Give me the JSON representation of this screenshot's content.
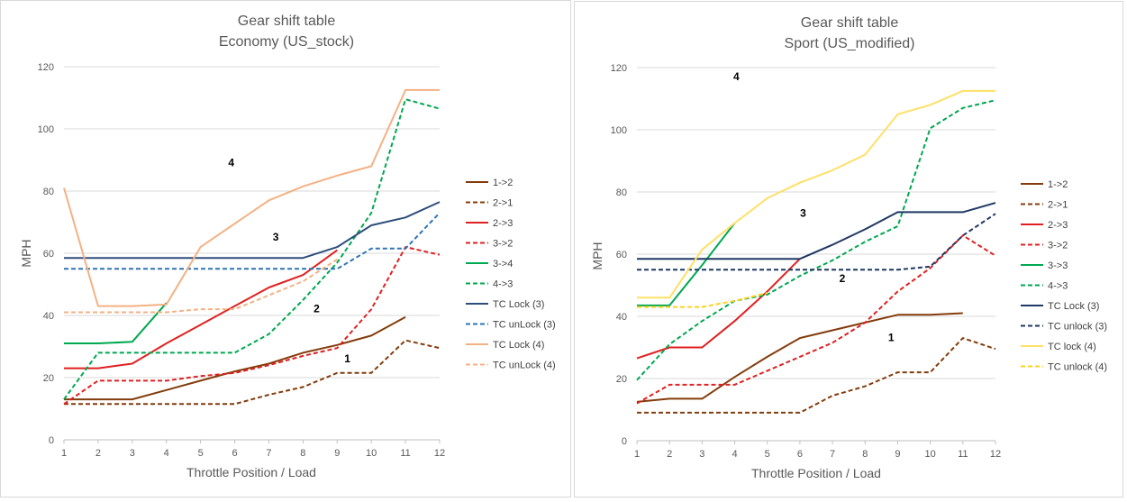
{
  "chart_data": [
    {
      "type": "line",
      "title": "Gear shift table",
      "subtitle": "Economy (US_stock)",
      "xlabel": "Throttle Position / Load",
      "ylabel": "MPH",
      "x": [
        1,
        2,
        3,
        4,
        5,
        6,
        7,
        8,
        9,
        10,
        11,
        12
      ],
      "xlim": [
        1,
        12
      ],
      "ylim": [
        0,
        120
      ],
      "yticks": [
        0,
        20,
        40,
        60,
        80,
        100,
        120
      ],
      "grid": "horizontal",
      "legend_position": "right",
      "series": [
        {
          "name": "1->2",
          "color": "#843c0c",
          "dash": "solid",
          "values": [
            13,
            13,
            13,
            16,
            19,
            22,
            24.5,
            28,
            30.5,
            33.5,
            39.5,
            null
          ]
        },
        {
          "name": "2->1",
          "color": "#843c0c",
          "dash": "dashed",
          "values": [
            11.5,
            11.5,
            11.5,
            11.5,
            11.5,
            11.5,
            14.5,
            17,
            21.5,
            21.5,
            32,
            29.5
          ]
        },
        {
          "name": "2->3",
          "color": "#e02020",
          "dash": "solid",
          "values": [
            23,
            23,
            24.5,
            31,
            37,
            43,
            49,
            53,
            61,
            null,
            null,
            null
          ]
        },
        {
          "name": "3->2",
          "color": "#e02020",
          "dash": "dashed",
          "values": [
            11.5,
            19,
            19,
            19,
            20.5,
            21.5,
            24,
            27,
            29.5,
            42,
            62,
            59.5
          ]
        },
        {
          "name": "3->4",
          "color": "#00a850",
          "dash": "solid",
          "values": [
            31,
            31,
            31.5,
            44,
            null,
            null,
            null,
            null,
            null,
            null,
            null,
            null
          ]
        },
        {
          "name": "4->3",
          "color": "#00a850",
          "dash": "dashed",
          "values": [
            13,
            28,
            28,
            28,
            28,
            28,
            34,
            45,
            57,
            73,
            109.5,
            106.5
          ]
        },
        {
          "name": "TC Lock (3)",
          "color": "#2e4d7b",
          "dash": "solid",
          "values": [
            58.5,
            58.5,
            58.5,
            58.5,
            58.5,
            58.5,
            58.5,
            58.5,
            62,
            69,
            71.5,
            76.5
          ]
        },
        {
          "name": "TC unLock (3)",
          "color": "#2e75b6",
          "dash": "dashed",
          "values": [
            55,
            55,
            55,
            55,
            55,
            55,
            55,
            55,
            55,
            61.5,
            61.5,
            73
          ]
        },
        {
          "name": "TC Lock (4)",
          "color": "#f4b183",
          "dash": "solid",
          "values": [
            81,
            43,
            43,
            43.5,
            62,
            69.5,
            77,
            81.5,
            85,
            88,
            112.5,
            112.5
          ]
        },
        {
          "name": "TC unLock (4)",
          "color": "#f4b183",
          "dash": "dashed",
          "values": [
            41,
            41,
            41,
            41,
            42,
            42,
            46.5,
            51,
            58,
            null,
            null,
            null
          ]
        }
      ],
      "region_labels": [
        {
          "text": "4",
          "x": 5.9,
          "y": 88
        },
        {
          "text": "3",
          "x": 7.2,
          "y": 64
        },
        {
          "text": "2",
          "x": 8.4,
          "y": 41
        },
        {
          "text": "1",
          "x": 9.3,
          "y": 25
        }
      ]
    },
    {
      "type": "line",
      "title": "Gear shift table",
      "subtitle": "Sport (US_modified)",
      "xlabel": "Throttle Position / Load",
      "ylabel": "MPH",
      "x": [
        1,
        2,
        3,
        4,
        5,
        6,
        7,
        8,
        9,
        10,
        11,
        12
      ],
      "xlim": [
        1,
        12
      ],
      "ylim": [
        0,
        120
      ],
      "yticks": [
        0,
        20,
        40,
        60,
        80,
        100,
        120
      ],
      "grid": "horizontal",
      "legend_position": "right",
      "series": [
        {
          "name": "1->2",
          "color": "#843c0c",
          "dash": "solid",
          "values": [
            12.5,
            13.5,
            13.5,
            20.5,
            27,
            33,
            35.5,
            38,
            40.5,
            40.5,
            41,
            null
          ]
        },
        {
          "name": "2->1",
          "color": "#843c0c",
          "dash": "dashed",
          "values": [
            9,
            9,
            9,
            9,
            9,
            9,
            14.5,
            17.5,
            22,
            22,
            33,
            29.5
          ]
        },
        {
          "name": "2->3",
          "color": "#e02020",
          "dash": "solid",
          "values": [
            26.5,
            30,
            30,
            38.5,
            48,
            58.5,
            null,
            null,
            null,
            null,
            null,
            null
          ]
        },
        {
          "name": "3->2",
          "color": "#e02020",
          "dash": "dashed",
          "values": [
            12,
            18,
            18,
            18,
            22.5,
            27,
            31.5,
            38,
            48,
            55.5,
            66,
            59.5
          ]
        },
        {
          "name": "3->3",
          "color": "#00a850",
          "dash": "solid",
          "values": [
            43.5,
            43.5,
            56.5,
            70,
            null,
            null,
            null,
            null,
            null,
            null,
            null,
            null
          ]
        },
        {
          "name": "4->3",
          "color": "#00a850",
          "dash": "dashed",
          "values": [
            19.5,
            31,
            38.5,
            45,
            47,
            53,
            58,
            64,
            69,
            100.5,
            107,
            109.5
          ]
        },
        {
          "name": "TC Lock (3)",
          "color": "#1f3864",
          "dash": "solid",
          "values": [
            58.5,
            58.5,
            58.5,
            58.5,
            58.5,
            58.5,
            63,
            68,
            73.5,
            73.5,
            73.5,
            76.5
          ]
        },
        {
          "name": "TC unlock (3)",
          "color": "#1f3864",
          "dash": "dashed",
          "values": [
            55,
            55,
            55,
            55,
            55,
            55,
            55,
            55,
            55,
            56,
            66,
            73
          ]
        },
        {
          "name": "TC lock (4)",
          "color": "#ffe066",
          "dash": "solid",
          "values": [
            46,
            46,
            61.5,
            70,
            78,
            83,
            87,
            92,
            105,
            108,
            112.5,
            112.5
          ]
        },
        {
          "name": "TC unlock (4)",
          "color": "#ffd21f",
          "dash": "dashed",
          "values": [
            43,
            43,
            43,
            45,
            47.5,
            null,
            null,
            null,
            null,
            null,
            null,
            null
          ]
        }
      ],
      "region_labels": [
        {
          "text": "4",
          "x": 4.05,
          "y": 116
        },
        {
          "text": "3",
          "x": 6.1,
          "y": 72
        },
        {
          "text": "2",
          "x": 7.3,
          "y": 51
        },
        {
          "text": "1",
          "x": 8.8,
          "y": 32
        }
      ]
    }
  ]
}
